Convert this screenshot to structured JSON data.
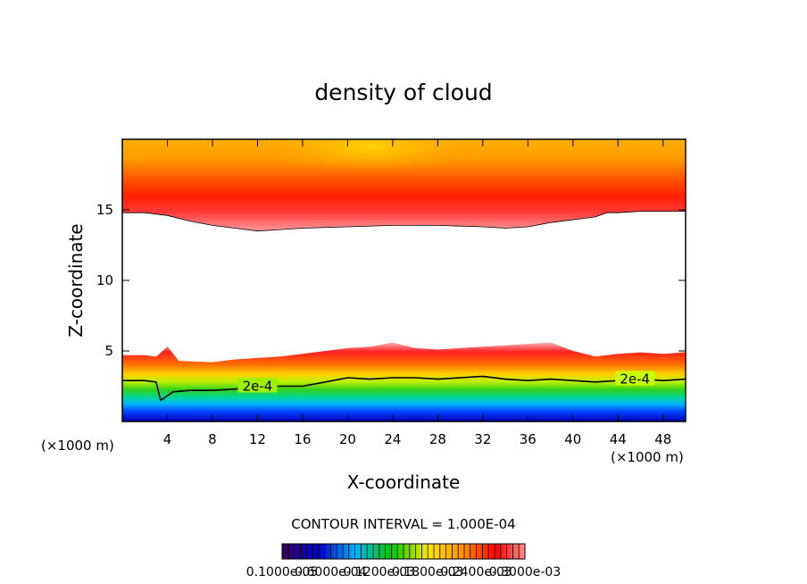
{
  "chart_data": {
    "type": "heatmap",
    "title": "density of cloud",
    "xlabel": "X-coordinate",
    "ylabel": "Z-coordinate",
    "x_unit": "(×1000 m)",
    "x_unit_right": "(×1000 m)",
    "xlim": [
      0,
      50
    ],
    "ylim": [
      0,
      20
    ],
    "x_ticks": [
      4,
      8,
      12,
      16,
      20,
      24,
      28,
      32,
      36,
      40,
      44,
      48
    ],
    "y_ticks": [
      5,
      10,
      15
    ],
    "contour_label": "2e-4",
    "contour_level": 0.0002,
    "contour_interval_text": "CONTOUR INTERVAL = 1.000E-04",
    "colorbar": {
      "labels": [
        "0.1000e-05",
        "0.6000e-04",
        "0.1200e-03",
        "0.1800e-03",
        "0.2400e-03",
        "0.3000e-03"
      ],
      "colors": [
        "#3a0060",
        "#0000c8",
        "#00b4ff",
        "#00c800",
        "#ffe600",
        "#ff8c00",
        "#ff0000",
        "#ff9090"
      ]
    },
    "upper_layer_base_km": [
      [
        0,
        14.8
      ],
      [
        2,
        14.8
      ],
      [
        4,
        14.6
      ],
      [
        6,
        14.2
      ],
      [
        8,
        13.9
      ],
      [
        10,
        13.7
      ],
      [
        12,
        13.5
      ],
      [
        14,
        13.6
      ],
      [
        16,
        13.7
      ],
      [
        20,
        13.8
      ],
      [
        24,
        13.9
      ],
      [
        28,
        13.9
      ],
      [
        32,
        13.8
      ],
      [
        34,
        13.7
      ],
      [
        36,
        13.8
      ],
      [
        38,
        14.1
      ],
      [
        40,
        14.3
      ],
      [
        42,
        14.5
      ],
      [
        43,
        14.8
      ],
      [
        44,
        14.8
      ],
      [
        46,
        14.9
      ],
      [
        48,
        14.9
      ],
      [
        50,
        14.9
      ]
    ],
    "lower_layer_top_km": [
      [
        0,
        4.7
      ],
      [
        2,
        4.7
      ],
      [
        3,
        4.6
      ],
      [
        4,
        5.3
      ],
      [
        5,
        4.3
      ],
      [
        8,
        4.2
      ],
      [
        10,
        4.4
      ],
      [
        12,
        4.5
      ],
      [
        14,
        4.6
      ],
      [
        16,
        4.8
      ],
      [
        18,
        5.0
      ],
      [
        20,
        5.2
      ],
      [
        22,
        5.3
      ],
      [
        24,
        5.6
      ],
      [
        25,
        5.4
      ],
      [
        26,
        5.2
      ],
      [
        28,
        5.1
      ],
      [
        30,
        5.2
      ],
      [
        32,
        5.3
      ],
      [
        34,
        5.4
      ],
      [
        36,
        5.5
      ],
      [
        38,
        5.6
      ],
      [
        40,
        5.0
      ],
      [
        42,
        4.6
      ],
      [
        44,
        4.8
      ],
      [
        46,
        4.9
      ],
      [
        48,
        4.8
      ],
      [
        50,
        4.9
      ]
    ],
    "contour_2e4_km": [
      [
        0,
        2.9
      ],
      [
        2,
        2.9
      ],
      [
        3,
        2.8
      ],
      [
        3.4,
        1.5
      ],
      [
        4.5,
        2.1
      ],
      [
        6,
        2.2
      ],
      [
        8,
        2.2
      ],
      [
        10,
        2.3
      ],
      [
        12,
        2.5
      ],
      [
        14,
        2.5
      ],
      [
        16,
        2.5
      ],
      [
        18,
        2.8
      ],
      [
        20,
        3.1
      ],
      [
        22,
        3.0
      ],
      [
        24,
        3.1
      ],
      [
        26,
        3.1
      ],
      [
        28,
        3.0
      ],
      [
        30,
        3.1
      ],
      [
        32,
        3.2
      ],
      [
        34,
        3.0
      ],
      [
        36,
        2.9
      ],
      [
        38,
        3.0
      ],
      [
        40,
        2.9
      ],
      [
        42,
        2.8
      ],
      [
        44,
        2.9
      ],
      [
        46,
        3.0
      ],
      [
        48,
        2.9
      ],
      [
        50,
        3.0
      ]
    ]
  }
}
